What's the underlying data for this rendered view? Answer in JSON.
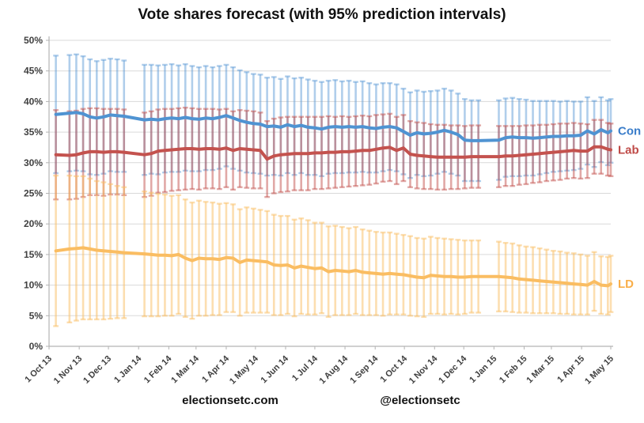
{
  "title": "Vote shares forecast (with 95% prediction intervals)",
  "footer": {
    "left": "electionsetc.com",
    "right": "@electionsetc"
  },
  "chart_data": {
    "type": "line",
    "title": "Vote shares forecast (with 95% prediction intervals)",
    "grid": true,
    "legend_position": "right-inline",
    "colors": {
      "grid": "#d9d9d9",
      "axis": "#b3b3b3",
      "axis_text": "#404040"
    },
    "y_axis": {
      "min": 0,
      "max": 50,
      "step": 5,
      "tick_labels": [
        "0%",
        "5%",
        "10%",
        "15%",
        "20%",
        "25%",
        "30%",
        "35%",
        "40%",
        "45%",
        "50%"
      ]
    },
    "x_axis": {
      "tick_labels": [
        "1 Oct 13",
        "1 Nov 13",
        "1 Dec 13",
        "1 Jan 14",
        "1 Feb 14",
        "1 Mar 14",
        "1 Apr 14",
        "1 May 14",
        "1 Jun 14",
        "1 Jul 14",
        "1 Aug 14",
        "1 Sep 14",
        "1 Oct 14",
        "1 Nov 14",
        "1 Dec 14",
        "1 Jan 15",
        "1 Feb 15",
        "1 Mar 15",
        "1 Apr 15",
        "1 May 15"
      ],
      "tick_dates": [
        "2013-10-01",
        "2013-11-01",
        "2013-12-01",
        "2014-01-01",
        "2014-02-01",
        "2014-03-01",
        "2014-04-01",
        "2014-05-01",
        "2014-06-01",
        "2014-07-01",
        "2014-08-01",
        "2014-09-01",
        "2014-10-01",
        "2014-11-01",
        "2014-12-01",
        "2015-01-01",
        "2015-02-01",
        "2015-03-01",
        "2015-04-01",
        "2015-05-01"
      ]
    },
    "dates": [
      "2013-10-08",
      "2013-10-22",
      "2013-10-29",
      "2013-11-05",
      "2013-11-12",
      "2013-11-19",
      "2013-11-26",
      "2013-12-03",
      "2013-12-10",
      "2013-12-17",
      "2014-01-07",
      "2014-01-14",
      "2014-01-21",
      "2014-01-28",
      "2014-02-04",
      "2014-02-11",
      "2014-02-18",
      "2014-02-25",
      "2014-03-04",
      "2014-03-11",
      "2014-03-18",
      "2014-03-25",
      "2014-04-01",
      "2014-04-08",
      "2014-04-15",
      "2014-04-22",
      "2014-04-29",
      "2014-05-06",
      "2014-05-13",
      "2014-05-20",
      "2014-05-27",
      "2014-06-03",
      "2014-06-10",
      "2014-06-17",
      "2014-06-24",
      "2014-07-01",
      "2014-07-08",
      "2014-07-15",
      "2014-07-22",
      "2014-07-29",
      "2014-08-05",
      "2014-08-12",
      "2014-08-19",
      "2014-08-26",
      "2014-09-02",
      "2014-09-09",
      "2014-09-16",
      "2014-09-23",
      "2014-09-30",
      "2014-10-07",
      "2014-10-14",
      "2014-10-21",
      "2014-10-28",
      "2014-11-04",
      "2014-11-11",
      "2014-11-18",
      "2014-11-25",
      "2014-12-02",
      "2014-12-09",
      "2014-12-16",
      "2015-01-06",
      "2015-01-13",
      "2015-01-20",
      "2015-01-27",
      "2015-02-03",
      "2015-02-10",
      "2015-02-17",
      "2015-02-24",
      "2015-03-03",
      "2015-03-10",
      "2015-03-17",
      "2015-03-24",
      "2015-03-31",
      "2015-04-07",
      "2015-04-14",
      "2015-04-21",
      "2015-04-28",
      "2015-05-01"
    ],
    "series": [
      {
        "name": "Con",
        "line_color": "#4f93d2",
        "bar_color": "rgba(79,147,210,0.45)",
        "label_color": "#3a7dca",
        "values": [
          37.9,
          38.1,
          38.2,
          38.0,
          37.5,
          37.3,
          37.5,
          37.8,
          37.7,
          37.6,
          37.0,
          37.1,
          37.0,
          37.2,
          37.3,
          37.2,
          37.4,
          37.2,
          37.1,
          37.3,
          37.2,
          37.4,
          37.7,
          37.3,
          36.9,
          36.6,
          36.4,
          36.3,
          35.9,
          36.0,
          35.8,
          36.2,
          35.9,
          36.1,
          35.8,
          35.7,
          35.5,
          35.8,
          35.9,
          35.8,
          35.9,
          35.8,
          35.9,
          35.7,
          35.6,
          35.8,
          35.9,
          35.7,
          35.1,
          34.5,
          34.9,
          34.7,
          34.8,
          35.0,
          35.3,
          35.0,
          34.6,
          33.7,
          33.6,
          33.6,
          33.7,
          34.1,
          34.2,
          34.1,
          34.1,
          34.0,
          34.1,
          34.2,
          34.3,
          34.3,
          34.4,
          34.4,
          34.5,
          35.2,
          34.7,
          35.4,
          34.9,
          35.2
        ],
        "halfwidths": [
          9.6,
          9.5,
          9.5,
          9.4,
          9.4,
          9.3,
          9.3,
          9.2,
          9.2,
          9.1,
          9.0,
          8.9,
          8.9,
          8.8,
          8.8,
          8.7,
          8.7,
          8.6,
          8.5,
          8.5,
          8.4,
          8.4,
          8.3,
          8.3,
          8.2,
          8.2,
          8.1,
          8.1,
          8.0,
          8.0,
          7.9,
          7.9,
          7.9,
          7.8,
          7.8,
          7.7,
          7.7,
          7.6,
          7.6,
          7.5,
          7.5,
          7.4,
          7.4,
          7.3,
          7.2,
          7.2,
          7.1,
          7.1,
          7.0,
          7.0,
          6.9,
          6.9,
          6.9,
          6.8,
          6.8,
          6.8,
          6.7,
          6.7,
          6.6,
          6.6,
          6.5,
          6.4,
          6.4,
          6.3,
          6.2,
          6.1,
          6.0,
          5.9,
          5.8,
          5.7,
          5.7,
          5.6,
          5.5,
          5.5,
          5.4,
          5.3,
          5.3,
          5.2
        ]
      },
      {
        "name": "Lab",
        "line_color": "#c4524e",
        "bar_color": "rgba(196,82,78,0.5)",
        "label_color": "#bf4a47",
        "values": [
          31.3,
          31.2,
          31.3,
          31.6,
          31.8,
          31.8,
          31.7,
          31.8,
          31.8,
          31.7,
          31.3,
          31.5,
          31.9,
          32.0,
          32.1,
          32.2,
          32.3,
          32.3,
          32.2,
          32.3,
          32.3,
          32.2,
          32.4,
          32.0,
          32.3,
          32.2,
          32.1,
          32.0,
          30.6,
          31.1,
          31.3,
          31.4,
          31.5,
          31.5,
          31.5,
          31.6,
          31.6,
          31.7,
          31.7,
          31.8,
          31.8,
          31.9,
          32.0,
          32.0,
          32.2,
          32.4,
          32.5,
          32.0,
          32.4,
          31.4,
          31.2,
          31.1,
          31.0,
          30.9,
          30.9,
          30.9,
          30.9,
          30.9,
          31.0,
          31.0,
          31.0,
          31.1,
          31.1,
          31.2,
          31.3,
          31.4,
          31.5,
          31.6,
          31.7,
          31.8,
          31.9,
          32.0,
          31.9,
          31.9,
          32.6,
          32.6,
          32.2,
          32.1
        ],
        "halfwidths": [
          7.3,
          7.2,
          7.2,
          7.2,
          7.1,
          7.1,
          7.1,
          7.0,
          7.0,
          7.0,
          6.9,
          6.9,
          6.8,
          6.8,
          6.7,
          6.7,
          6.7,
          6.6,
          6.6,
          6.5,
          6.5,
          6.5,
          6.4,
          6.4,
          6.3,
          6.3,
          6.3,
          6.2,
          6.2,
          6.1,
          6.1,
          6.1,
          6.0,
          6.0,
          6.0,
          5.9,
          5.9,
          5.9,
          5.8,
          5.8,
          5.7,
          5.7,
          5.7,
          5.6,
          5.6,
          5.5,
          5.5,
          5.5,
          5.4,
          5.4,
          5.4,
          5.4,
          5.3,
          5.3,
          5.3,
          5.2,
          5.2,
          5.1,
          5.1,
          5.1,
          5.0,
          4.9,
          4.9,
          4.8,
          4.8,
          4.7,
          4.7,
          4.6,
          4.6,
          4.6,
          4.5,
          4.5,
          4.5,
          4.4,
          4.4,
          4.4,
          4.3,
          4.3
        ]
      },
      {
        "name": "LD",
        "line_color": "#fabd62",
        "bar_color": "rgba(250,189,98,0.5)",
        "label_color": "#f9ae49",
        "values": [
          15.6,
          15.9,
          16.0,
          16.1,
          15.9,
          15.7,
          15.6,
          15.5,
          15.4,
          15.3,
          15.1,
          15.0,
          14.9,
          14.9,
          14.8,
          15.0,
          14.4,
          14.0,
          14.4,
          14.3,
          14.3,
          14.2,
          14.5,
          14.4,
          13.7,
          14.1,
          14.0,
          13.9,
          13.8,
          13.3,
          13.2,
          13.3,
          12.8,
          13.1,
          12.9,
          12.7,
          12.8,
          12.2,
          12.4,
          12.3,
          12.2,
          12.4,
          12.1,
          12.0,
          11.9,
          11.8,
          11.9,
          11.8,
          11.7,
          11.5,
          11.3,
          11.2,
          11.6,
          11.5,
          11.4,
          11.4,
          11.3,
          11.3,
          11.4,
          11.4,
          11.4,
          11.3,
          11.2,
          11.0,
          10.9,
          10.8,
          10.7,
          10.6,
          10.5,
          10.4,
          10.3,
          10.2,
          10.1,
          10.0,
          10.6,
          10.0,
          9.9,
          10.2
        ],
        "halfwidths": [
          12.3,
          12.0,
          11.8,
          11.7,
          11.5,
          11.3,
          11.2,
          11.0,
          10.8,
          10.7,
          10.2,
          10.1,
          10.0,
          9.9,
          9.8,
          9.7,
          9.6,
          9.5,
          9.4,
          9.3,
          9.2,
          9.1,
          8.9,
          8.8,
          8.7,
          8.6,
          8.5,
          8.4,
          8.3,
          8.2,
          8.1,
          8.0,
          7.9,
          7.8,
          7.7,
          7.5,
          7.4,
          7.4,
          7.3,
          7.2,
          7.1,
          7.1,
          7.0,
          6.9,
          6.8,
          6.8,
          6.7,
          6.6,
          6.5,
          6.5,
          6.4,
          6.4,
          6.3,
          6.2,
          6.2,
          6.1,
          6.1,
          6.0,
          5.9,
          5.9,
          5.7,
          5.6,
          5.6,
          5.5,
          5.4,
          5.4,
          5.3,
          5.2,
          5.1,
          5.1,
          5.0,
          5.0,
          4.9,
          4.8,
          4.8,
          4.7,
          4.7,
          4.6
        ]
      }
    ]
  }
}
